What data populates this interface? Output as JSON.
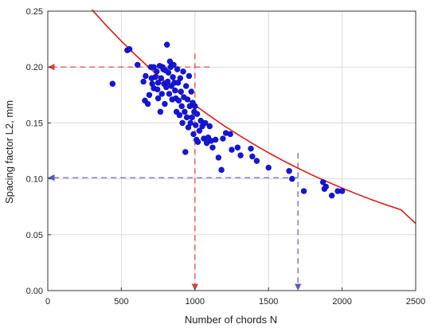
{
  "chart_data": {
    "type": "scatter",
    "xlabel": "Number of chords N",
    "ylabel": "Spacing factor L2, mm",
    "xlim": [
      0,
      2500
    ],
    "ylim": [
      0,
      0.25
    ],
    "xticks": [
      0,
      500,
      1000,
      1500,
      2000,
      2500
    ],
    "xtick_labels": [
      "0",
      "500",
      "1000",
      "1500",
      "2000",
      "2500"
    ],
    "yticks": [
      0,
      0.05,
      0.1,
      0.15,
      0.2,
      0.25
    ],
    "ytick_labels": [
      "0.00",
      "0.05",
      "0.10",
      "0.15",
      "0.20",
      "0.25"
    ],
    "grid": true,
    "colors": {
      "points": "#1515e0",
      "curve": "#d62020",
      "guide_red": "#e04040",
      "guide_blue": "#5a5ab8"
    },
    "points": [
      [
        440,
        0.185
      ],
      [
        540,
        0.215
      ],
      [
        555,
        0.216
      ],
      [
        610,
        0.202
      ],
      [
        650,
        0.187
      ],
      [
        660,
        0.17
      ],
      [
        665,
        0.192
      ],
      [
        680,
        0.167
      ],
      [
        690,
        0.175
      ],
      [
        700,
        0.2
      ],
      [
        705,
        0.19
      ],
      [
        710,
        0.185
      ],
      [
        720,
        0.2
      ],
      [
        720,
        0.181
      ],
      [
        730,
        0.191
      ],
      [
        740,
        0.196
      ],
      [
        745,
        0.18
      ],
      [
        750,
        0.186
      ],
      [
        750,
        0.172
      ],
      [
        760,
        0.201
      ],
      [
        765,
        0.16
      ],
      [
        770,
        0.19
      ],
      [
        775,
        0.176
      ],
      [
        780,
        0.2
      ],
      [
        785,
        0.198
      ],
      [
        790,
        0.185
      ],
      [
        795,
        0.167
      ],
      [
        800,
        0.197
      ],
      [
        805,
        0.182
      ],
      [
        810,
        0.22
      ],
      [
        815,
        0.187
      ],
      [
        820,
        0.195
      ],
      [
        825,
        0.176
      ],
      [
        830,
        0.205
      ],
      [
        835,
        0.2
      ],
      [
        840,
        0.183
      ],
      [
        845,
        0.171
      ],
      [
        850,
        0.191
      ],
      [
        855,
        0.202
      ],
      [
        860,
        0.186
      ],
      [
        865,
        0.179
      ],
      [
        870,
        0.172
      ],
      [
        875,
        0.16
      ],
      [
        880,
        0.198
      ],
      [
        885,
        0.186
      ],
      [
        890,
        0.17
      ],
      [
        895,
        0.157
      ],
      [
        900,
        0.19
      ],
      [
        905,
        0.178
      ],
      [
        910,
        0.165
      ],
      [
        915,
        0.15
      ],
      [
        920,
        0.196
      ],
      [
        925,
        0.173
      ],
      [
        930,
        0.16
      ],
      [
        935,
        0.124
      ],
      [
        940,
        0.183
      ],
      [
        945,
        0.155
      ],
      [
        950,
        0.171
      ],
      [
        955,
        0.146
      ],
      [
        960,
        0.192
      ],
      [
        965,
        0.165
      ],
      [
        970,
        0.15
      ],
      [
        975,
        0.178
      ],
      [
        980,
        0.155
      ],
      [
        985,
        0.168
      ],
      [
        990,
        0.14
      ],
      [
        995,
        0.16
      ],
      [
        1000,
        0.165
      ],
      [
        1005,
        0.148
      ],
      [
        1010,
        0.135
      ],
      [
        1015,
        0.158
      ],
      [
        1020,
        0.133
      ],
      [
        1030,
        0.143
      ],
      [
        1040,
        0.152
      ],
      [
        1050,
        0.147
      ],
      [
        1060,
        0.136
      ],
      [
        1070,
        0.15
      ],
      [
        1080,
        0.132
      ],
      [
        1090,
        0.137
      ],
      [
        1100,
        0.147
      ],
      [
        1110,
        0.134
      ],
      [
        1120,
        0.128
      ],
      [
        1140,
        0.135
      ],
      [
        1160,
        0.119
      ],
      [
        1180,
        0.108
      ],
      [
        1190,
        0.136
      ],
      [
        1210,
        0.141
      ],
      [
        1240,
        0.14
      ],
      [
        1250,
        0.126
      ],
      [
        1290,
        0.128
      ],
      [
        1310,
        0.121
      ],
      [
        1380,
        0.127
      ],
      [
        1390,
        0.12
      ],
      [
        1420,
        0.116
      ],
      [
        1500,
        0.11
      ],
      [
        1640,
        0.107
      ],
      [
        1660,
        0.1
      ],
      [
        1740,
        0.089
      ],
      [
        1870,
        0.097
      ],
      [
        1880,
        0.091
      ],
      [
        1890,
        0.093
      ],
      [
        1930,
        0.085
      ],
      [
        1970,
        0.089
      ],
      [
        2000,
        0.089
      ]
    ],
    "fit_curve": [
      [
        300,
        0.2513
      ],
      [
        400,
        0.2368
      ],
      [
        500,
        0.2232
      ],
      [
        600,
        0.2103
      ],
      [
        700,
        0.1982
      ],
      [
        800,
        0.1868
      ],
      [
        900,
        0.1761
      ],
      [
        1000,
        0.1659
      ],
      [
        1100,
        0.1564
      ],
      [
        1200,
        0.1473
      ],
      [
        1300,
        0.1389
      ],
      [
        1400,
        0.1309
      ],
      [
        1500,
        0.1233
      ],
      [
        1600,
        0.1162
      ],
      [
        1700,
        0.1095
      ],
      [
        1800,
        0.1032
      ],
      [
        1900,
        0.0973
      ],
      [
        2000,
        0.0917
      ],
      [
        2100,
        0.0864
      ],
      [
        2200,
        0.0814
      ],
      [
        2300,
        0.0767
      ],
      [
        2400,
        0.0723
      ],
      [
        2500,
        0.06
      ]
    ],
    "guides": [
      {
        "name": "red",
        "x": 1000,
        "y": 0.2
      },
      {
        "name": "blue",
        "x": 1700,
        "y": 0.101
      }
    ]
  }
}
